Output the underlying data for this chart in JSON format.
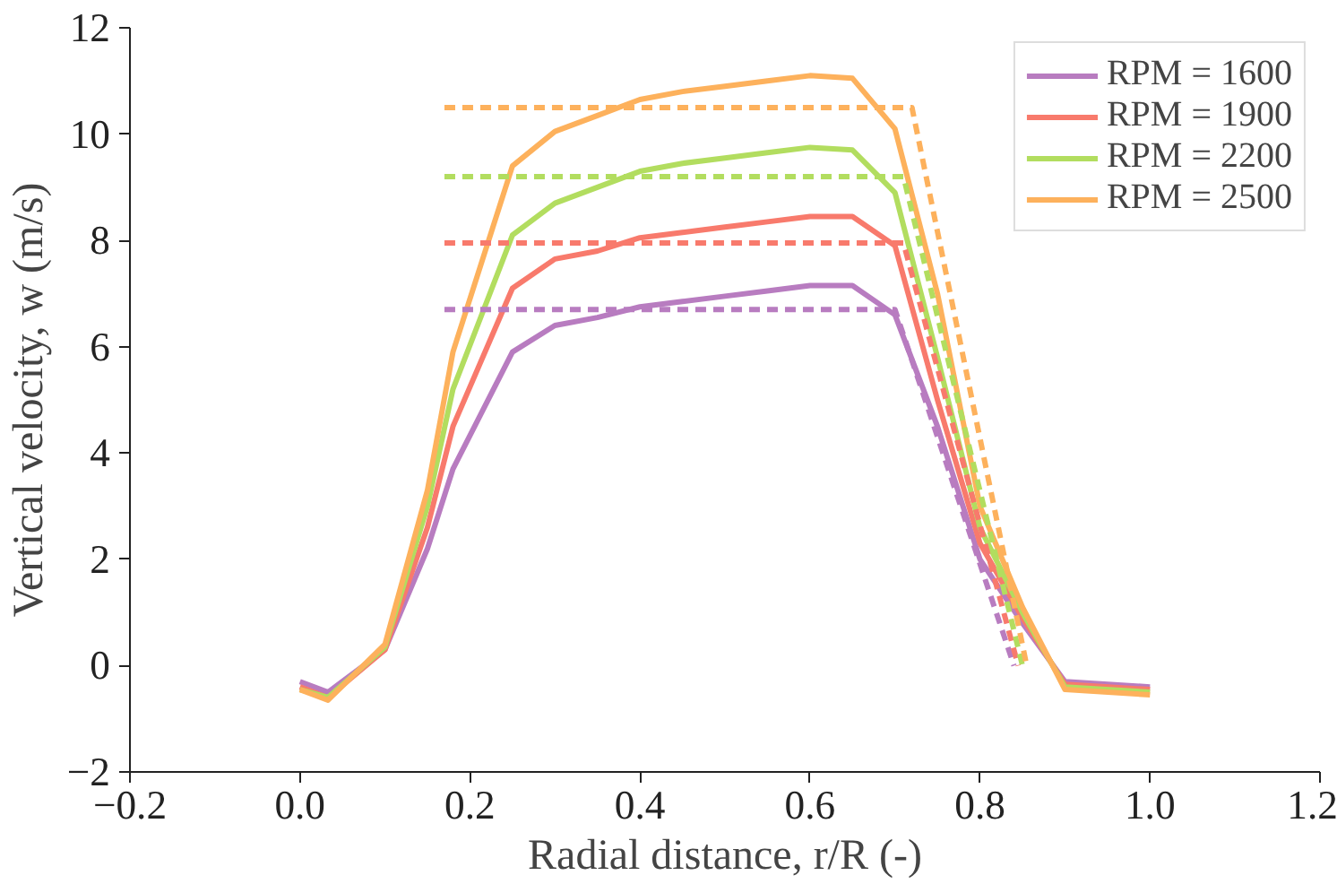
{
  "chart_data": {
    "type": "line",
    "xlabel": "Radial distance, r/R (-)",
    "ylabel": "Vertical velocity, w (m/s)",
    "xlim": [
      -0.2,
      1.2
    ],
    "ylim": [
      -2,
      12
    ],
    "xticks": [
      {
        "value": -0.2,
        "label": "−0.2"
      },
      {
        "value": 0.0,
        "label": "0.0"
      },
      {
        "value": 0.2,
        "label": "0.2"
      },
      {
        "value": 0.4,
        "label": "0.4"
      },
      {
        "value": 0.6,
        "label": "0.6"
      },
      {
        "value": 0.8,
        "label": "0.8"
      },
      {
        "value": 1.0,
        "label": "1.0"
      },
      {
        "value": 1.2,
        "label": "1.2"
      }
    ],
    "yticks": [
      {
        "value": -2,
        "label": "−2"
      },
      0,
      2,
      4,
      6,
      8,
      10,
      12
    ],
    "grid": false,
    "legend": "top right",
    "marker": "none",
    "x": [
      0,
      0.033,
      0.1,
      0.15,
      0.18,
      0.25,
      0.3,
      0.35,
      0.4,
      0.45,
      0.5,
      0.55,
      0.6,
      0.65,
      0.7,
      0.75,
      0.8,
      0.85,
      0.9,
      1.0
    ],
    "series": [
      {
        "name": "RPM = 1600",
        "color": "#b87cc0",
        "line_style": "solid",
        "values": [
          -0.3,
          -0.5,
          0.3,
          2.2,
          3.7,
          5.9,
          6.4,
          6.55,
          6.75,
          6.85,
          6.95,
          7.05,
          7.15,
          7.15,
          6.6,
          4.5,
          2.0,
          0.8,
          -0.3,
          -0.4
        ]
      },
      {
        "name": "RPM = 1900",
        "color": "#f87a6c",
        "line_style": "solid",
        "values": [
          -0.4,
          -0.6,
          0.3,
          2.6,
          4.5,
          7.1,
          7.65,
          7.8,
          8.05,
          8.15,
          8.25,
          8.35,
          8.45,
          8.45,
          7.9,
          5.0,
          2.3,
          0.9,
          -0.35,
          -0.45
        ]
      },
      {
        "name": "RPM = 2200",
        "color": "#b2dd5f",
        "line_style": "solid",
        "values": [
          -0.45,
          -0.6,
          0.35,
          3.0,
          5.2,
          8.1,
          8.7,
          9.0,
          9.3,
          9.45,
          9.55,
          9.65,
          9.75,
          9.7,
          8.9,
          5.8,
          2.6,
          1.0,
          -0.4,
          -0.5
        ]
      },
      {
        "name": "RPM = 2500",
        "color": "#fdb15c",
        "line_style": "solid",
        "values": [
          -0.45,
          -0.65,
          0.4,
          3.3,
          5.9,
          9.4,
          10.05,
          10.35,
          10.65,
          10.8,
          10.9,
          11.0,
          11.1,
          11.05,
          10.1,
          7.0,
          3.0,
          1.1,
          -0.45,
          -0.55
        ]
      },
      {
        "color": "#b87cc0",
        "line_style": "dashed",
        "x": [
          0.17,
          0.7,
          0.84
        ],
        "values": [
          6.7,
          6.7,
          0.0
        ]
      },
      {
        "color": "#f87a6c",
        "line_style": "dashed",
        "x": [
          0.17,
          0.71,
          0.845
        ],
        "values": [
          7.95,
          7.95,
          0.0
        ]
      },
      {
        "color": "#b2dd5f",
        "line_style": "dashed",
        "x": [
          0.17,
          0.71,
          0.85
        ],
        "values": [
          9.2,
          9.2,
          0.0
        ]
      },
      {
        "color": "#fdb15c",
        "line_style": "dashed",
        "x": [
          0.17,
          0.72,
          0.855
        ],
        "values": [
          10.5,
          10.5,
          0.0
        ]
      }
    ]
  }
}
